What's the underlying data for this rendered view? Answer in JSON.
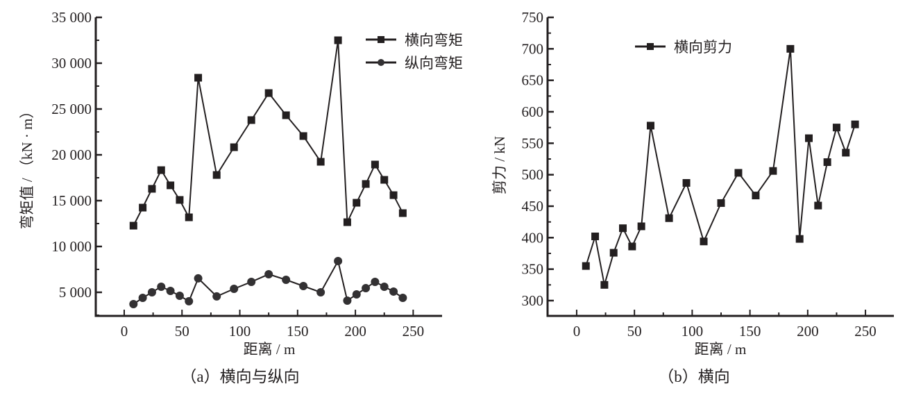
{
  "figure": {
    "captions": [
      "（a）横向与纵向",
      "（b）横向"
    ]
  },
  "chart_data": [
    {
      "id": "a",
      "type": "line",
      "title": "（a）横向与纵向",
      "xlabel": "距离 / m",
      "ylabel": "弯矩值 / （kN · m）",
      "xlim": [
        -24.6,
        275
      ],
      "ylim": [
        2424,
        35000
      ],
      "xticks": [
        0,
        50,
        100,
        150,
        200,
        250
      ],
      "xtick_labels": [
        "0",
        "50",
        "100",
        "150",
        "200",
        "250"
      ],
      "yticks": [
        5000,
        10000,
        15000,
        20000,
        25000,
        30000,
        35000
      ],
      "ytick_labels": [
        "5 000",
        "10 000",
        "15 000",
        "20 000",
        "25 000",
        "30 000",
        "35 000"
      ],
      "grid": false,
      "legend_position": "upper right",
      "x": [
        8,
        16,
        24,
        32,
        40,
        48,
        56,
        64,
        80,
        95,
        110,
        125,
        140,
        155,
        170,
        185,
        193,
        201,
        209,
        217,
        225,
        233,
        241
      ],
      "series": [
        {
          "name": "横向弯矩",
          "marker": "square",
          "values": [
            12270,
            14240,
            16290,
            18330,
            16670,
            15080,
            13180,
            28410,
            17800,
            20830,
            23790,
            26740,
            24320,
            22050,
            19240,
            32500,
            12650,
            14770,
            16820,
            18940,
            17270,
            15600,
            13640
          ]
        },
        {
          "name": "纵向弯矩",
          "marker": "circle",
          "values": [
            3710,
            4390,
            5000,
            5610,
            5150,
            4620,
            4020,
            6520,
            4550,
            5380,
            6140,
            6970,
            6360,
            5680,
            5000,
            8410,
            4090,
            4770,
            5450,
            6140,
            5610,
            5080,
            4390
          ]
        }
      ]
    },
    {
      "id": "b",
      "type": "line",
      "title": "（b）横向",
      "xlabel": "距离 / m",
      "ylabel": "剪力 / kN",
      "xlim": [
        -25.2,
        274.6
      ],
      "ylim": [
        275.7,
        750
      ],
      "xticks": [
        0,
        50,
        100,
        150,
        200,
        250
      ],
      "xtick_labels": [
        "0",
        "50",
        "100",
        "150",
        "200",
        "250"
      ],
      "yticks": [
        300,
        350,
        400,
        450,
        500,
        550,
        600,
        650,
        700,
        750
      ],
      "ytick_labels": [
        "300",
        "350",
        "400",
        "450",
        "500",
        "550",
        "600",
        "650",
        "700",
        "750"
      ],
      "grid": false,
      "legend_position": "upper left",
      "x": [
        8,
        16,
        24,
        32,
        40,
        48,
        56,
        64,
        80,
        95,
        110,
        125,
        140,
        155,
        170,
        185,
        193,
        201,
        209,
        217,
        225,
        233,
        241
      ],
      "series": [
        {
          "name": "横向剪力",
          "marker": "square",
          "values": [
            355,
            402,
            325,
            376,
            415,
            386,
            418,
            578,
            431,
            487,
            394,
            455,
            503,
            467,
            506,
            700,
            398,
            558,
            451,
            520,
            575,
            535,
            580
          ]
        }
      ]
    }
  ],
  "colors": {
    "line": "#231f20",
    "marker": "#231f20",
    "axis": "#231f20",
    "text": "#231f20",
    "background": "#ffffff"
  }
}
